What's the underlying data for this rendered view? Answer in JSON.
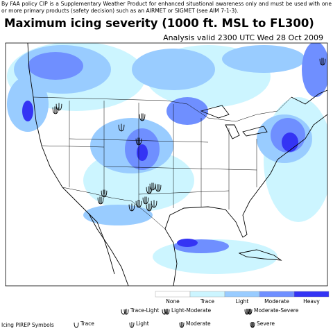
{
  "disclaimer": "By FAA policy CIP is a Supplementary Weather Product for enhanced situational awareness only and must be used with one or more primary products (safety decision) such as an AIRMET or SIGMET (see AIM 7-1-3).",
  "title": "Maximum icing severity (1000 ft. MSL to FL300)",
  "subtitle": "Analysis valid 2300 UTC Wed 28 Oct 2009",
  "legend": {
    "items": [
      {
        "label": "None",
        "color": "#ffffff"
      },
      {
        "label": "Trace",
        "color": "#ccf5ff"
      },
      {
        "label": "Light",
        "color": "#99ccff"
      },
      {
        "label": "Moderate",
        "color": "#6f8fff"
      },
      {
        "label": "Heavy",
        "color": "#3434f4"
      }
    ]
  },
  "pirep_legend": {
    "title": "Icing PIREP Symbols",
    "symbols": [
      "Trace",
      "Trace-Light",
      "Light",
      "Light-Moderate",
      "Moderate",
      "Moderate-Severe",
      "Severe"
    ]
  }
}
